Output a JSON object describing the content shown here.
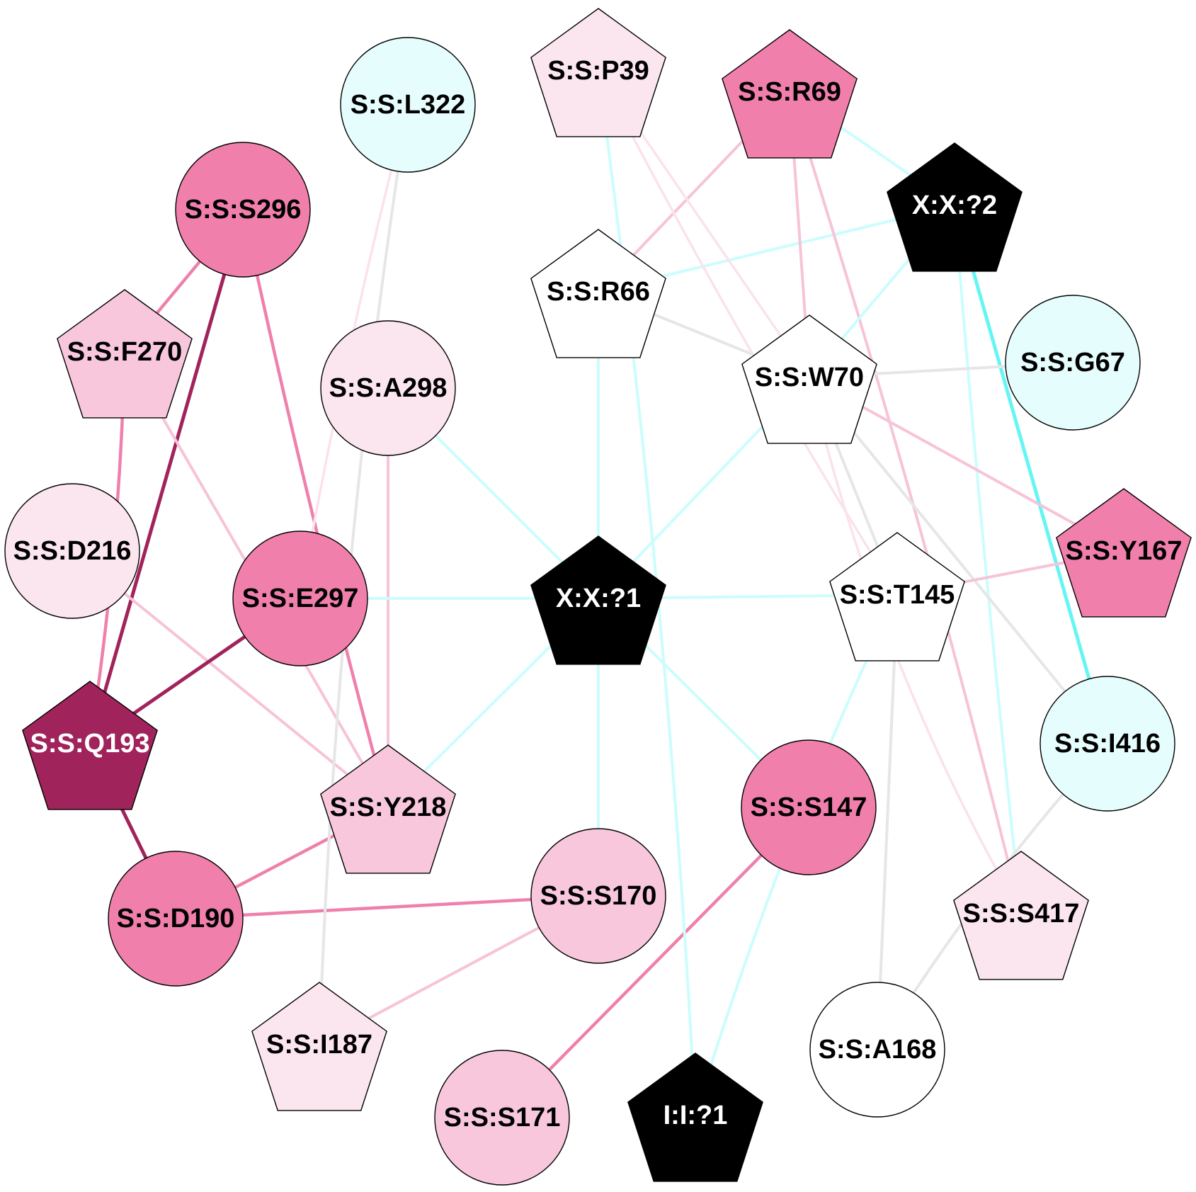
{
  "colors": {
    "white": "#ffffff",
    "black": "#000000",
    "cyan_light": "#e5fdfd",
    "pink_pale": "#fbe6ef",
    "pink_light": "#f8c7dc",
    "pink_mid": "#f07fab",
    "magenta_dark": "#a1235c",
    "edge_grey": "#e6e6e6",
    "edge_cyan": "#ccfdfd",
    "edge_cyan_strong": "#66f5f5",
    "edge_pink_pale": "#fbe2ec",
    "edge_pink_light": "#f7c3d8",
    "edge_pink_mid": "#ef80ab",
    "edge_magenta": "#a1235c"
  },
  "nodes": [
    {
      "id": "P39",
      "label": "S:S:P39",
      "shape": "pentagon-icon",
      "fill": "pink_pale",
      "text": "black"
    },
    {
      "id": "L322",
      "label": "S:S:L322",
      "shape": "circle-icon",
      "fill": "cyan_light",
      "text": "black"
    },
    {
      "id": "R69",
      "label": "S:S:R69",
      "shape": "pentagon-icon",
      "fill": "pink_mid",
      "text": "black"
    },
    {
      "id": "X2",
      "label": "X:X:?2",
      "shape": "pentagon-icon",
      "fill": "black",
      "text": "white"
    },
    {
      "id": "S296",
      "label": "S:S:S296",
      "shape": "circle-icon",
      "fill": "pink_mid",
      "text": "black"
    },
    {
      "id": "R66",
      "label": "S:S:R66",
      "shape": "pentagon-icon",
      "fill": "white",
      "text": "black"
    },
    {
      "id": "F270",
      "label": "S:S:F270",
      "shape": "pentagon-icon",
      "fill": "pink_light",
      "text": "black"
    },
    {
      "id": "A298",
      "label": "S:S:A298",
      "shape": "circle-icon",
      "fill": "pink_pale",
      "text": "black"
    },
    {
      "id": "W70",
      "label": "S:S:W70",
      "shape": "pentagon-icon",
      "fill": "white",
      "text": "black"
    },
    {
      "id": "G67",
      "label": "S:S:G67",
      "shape": "circle-icon",
      "fill": "cyan_light",
      "text": "black"
    },
    {
      "id": "D216",
      "label": "S:S:D216",
      "shape": "circle-icon",
      "fill": "pink_pale",
      "text": "black"
    },
    {
      "id": "E297",
      "label": "S:S:E297",
      "shape": "circle-icon",
      "fill": "pink_mid",
      "text": "black"
    },
    {
      "id": "X1",
      "label": "X:X:?1",
      "shape": "pentagon-icon",
      "fill": "black",
      "text": "white"
    },
    {
      "id": "T145",
      "label": "S:S:T145",
      "shape": "pentagon-icon",
      "fill": "white",
      "text": "black"
    },
    {
      "id": "Y167",
      "label": "S:S:Y167",
      "shape": "pentagon-icon",
      "fill": "pink_mid",
      "text": "black"
    },
    {
      "id": "Q193",
      "label": "S:S:Q193",
      "shape": "pentagon-icon",
      "fill": "magenta_dark",
      "text": "white"
    },
    {
      "id": "I416",
      "label": "S:S:I416",
      "shape": "circle-icon",
      "fill": "cyan_light",
      "text": "black"
    },
    {
      "id": "Y218",
      "label": "S:S:Y218",
      "shape": "pentagon-icon",
      "fill": "pink_light",
      "text": "black"
    },
    {
      "id": "S147",
      "label": "S:S:S147",
      "shape": "circle-icon",
      "fill": "pink_mid",
      "text": "black"
    },
    {
      "id": "D190",
      "label": "S:S:D190",
      "shape": "circle-icon",
      "fill": "pink_mid",
      "text": "black"
    },
    {
      "id": "S170",
      "label": "S:S:S170",
      "shape": "circle-icon",
      "fill": "pink_light",
      "text": "black"
    },
    {
      "id": "S417",
      "label": "S:S:S417",
      "shape": "pentagon-icon",
      "fill": "pink_pale",
      "text": "black"
    },
    {
      "id": "I187",
      "label": "S:S:I187",
      "shape": "pentagon-icon",
      "fill": "pink_pale",
      "text": "black"
    },
    {
      "id": "A168",
      "label": "S:S:A168",
      "shape": "circle-icon",
      "fill": "white",
      "text": "black"
    },
    {
      "id": "S171",
      "label": "S:S:S171",
      "shape": "circle-icon",
      "fill": "pink_light",
      "text": "black"
    },
    {
      "id": "I1",
      "label": "I:I:?1",
      "shape": "pentagon-icon",
      "fill": "black",
      "text": "white"
    }
  ],
  "edges": [
    {
      "from": "S296",
      "to": "F270",
      "color": "edge_pink_mid"
    },
    {
      "from": "S296",
      "to": "Q193",
      "color": "edge_magenta"
    },
    {
      "from": "S296",
      "to": "Y218",
      "color": "edge_pink_mid"
    },
    {
      "from": "F270",
      "to": "Q193",
      "color": "edge_pink_mid"
    },
    {
      "from": "F270",
      "to": "Y218",
      "color": "edge_pink_light"
    },
    {
      "from": "D216",
      "to": "Y218",
      "color": "edge_pink_light"
    },
    {
      "from": "E297",
      "to": "Q193",
      "color": "edge_magenta"
    },
    {
      "from": "Q193",
      "to": "D190",
      "color": "edge_magenta"
    },
    {
      "from": "D190",
      "to": "Y218",
      "color": "edge_pink_mid"
    },
    {
      "from": "D190",
      "to": "S170",
      "color": "edge_pink_mid"
    },
    {
      "from": "S170",
      "to": "I187",
      "color": "edge_pink_light"
    },
    {
      "from": "S147",
      "to": "S171",
      "color": "edge_pink_mid"
    },
    {
      "from": "A298",
      "to": "Y218",
      "color": "edge_pink_light"
    },
    {
      "from": "L322",
      "to": "E297",
      "color": "edge_pink_pale"
    },
    {
      "from": "L322",
      "to": "I187",
      "color": "edge_grey"
    },
    {
      "from": "A298",
      "to": "X1",
      "color": "edge_cyan"
    },
    {
      "from": "E297",
      "to": "X1",
      "color": "edge_cyan"
    },
    {
      "from": "Y218",
      "to": "X1",
      "color": "edge_cyan"
    },
    {
      "from": "X1",
      "to": "S170",
      "color": "edge_cyan"
    },
    {
      "from": "X1",
      "to": "S147",
      "color": "edge_cyan"
    },
    {
      "from": "X1",
      "to": "T145",
      "color": "edge_cyan"
    },
    {
      "from": "X1",
      "to": "W70",
      "color": "edge_cyan"
    },
    {
      "from": "R66",
      "to": "X1",
      "color": "edge_cyan"
    },
    {
      "from": "R66",
      "to": "R69",
      "color": "edge_pink_light"
    },
    {
      "from": "R66",
      "to": "X2",
      "color": "edge_cyan"
    },
    {
      "from": "R66",
      "to": "W70",
      "color": "edge_grey"
    },
    {
      "from": "P39",
      "to": "I1",
      "color": "edge_cyan"
    },
    {
      "from": "P39",
      "to": "W70",
      "color": "edge_pink_pale"
    },
    {
      "from": "P39",
      "to": "T145",
      "color": "edge_pink_pale"
    },
    {
      "from": "R69",
      "to": "W70",
      "color": "edge_pink_light"
    },
    {
      "from": "R69",
      "to": "X2",
      "color": "edge_cyan"
    },
    {
      "from": "R69",
      "to": "S417",
      "color": "edge_pink_light"
    },
    {
      "from": "X2",
      "to": "W70",
      "color": "edge_cyan"
    },
    {
      "from": "X2",
      "to": "I416",
      "color": "edge_cyan_strong"
    },
    {
      "from": "X2",
      "to": "S417",
      "color": "edge_cyan"
    },
    {
      "from": "W70",
      "to": "G67",
      "color": "edge_grey"
    },
    {
      "from": "W70",
      "to": "Y167",
      "color": "edge_pink_light"
    },
    {
      "from": "W70",
      "to": "T145",
      "color": "edge_grey"
    },
    {
      "from": "W70",
      "to": "I416",
      "color": "edge_grey"
    },
    {
      "from": "W70",
      "to": "S417",
      "color": "edge_pink_pale"
    },
    {
      "from": "T145",
      "to": "Y167",
      "color": "edge_pink_light"
    },
    {
      "from": "T145",
      "to": "A168",
      "color": "edge_grey"
    },
    {
      "from": "T145",
      "to": "I1",
      "color": "edge_cyan"
    },
    {
      "from": "I416",
      "to": "A168",
      "color": "edge_grey"
    }
  ]
}
